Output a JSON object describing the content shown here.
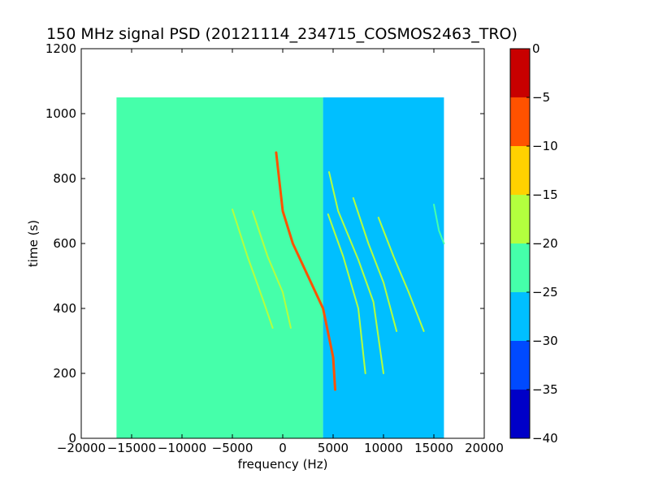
{
  "chart_data": {
    "type": "heatmap",
    "title": "150 MHz signal PSD (20121114_234715_COSMOS2463_TRO)",
    "xlabel": "frequency (Hz)",
    "ylabel": "time (s)",
    "xlim": [
      -20000,
      20000
    ],
    "ylim": [
      0,
      1200
    ],
    "xticks": [
      -20000,
      -15000,
      -10000,
      -5000,
      0,
      5000,
      10000,
      15000,
      20000
    ],
    "xtick_labels": [
      "−20000",
      "−15000",
      "−10000",
      "−5000",
      "0",
      "5000",
      "10000",
      "15000",
      "20000"
    ],
    "yticks": [
      0,
      200,
      400,
      600,
      800,
      1000,
      1200
    ],
    "ytick_labels": [
      "0",
      "200",
      "400",
      "600",
      "800",
      "1000",
      "1200"
    ],
    "data_extent": {
      "x": [
        -16500,
        16500
      ],
      "y": [
        0,
        1050
      ]
    },
    "background_regions": [
      {
        "x": [
          -16500,
          2500
        ],
        "level": -22.5
      },
      {
        "x": [
          2500,
          4000
        ],
        "level": -24
      },
      {
        "x": [
          4000,
          16000
        ],
        "level": -27.5
      }
    ],
    "traces": [
      {
        "level": -7.5,
        "points": [
          [
            -650,
            880
          ],
          [
            0,
            700
          ],
          [
            1000,
            600
          ],
          [
            2500,
            500
          ],
          [
            4000,
            400
          ],
          [
            5000,
            250
          ],
          [
            5200,
            150
          ]
        ]
      },
      {
        "level": -17.5,
        "points": [
          [
            -5000,
            705
          ],
          [
            -3500,
            560
          ],
          [
            -2000,
            430
          ],
          [
            -1000,
            340
          ]
        ]
      },
      {
        "level": -17.5,
        "points": [
          [
            -3000,
            700
          ],
          [
            -1500,
            560
          ],
          [
            0,
            450
          ],
          [
            800,
            340
          ]
        ]
      },
      {
        "level": -17.5,
        "points": [
          [
            4500,
            690
          ],
          [
            6000,
            560
          ],
          [
            7500,
            400
          ],
          [
            8200,
            200
          ]
        ]
      },
      {
        "level": -17.5,
        "points": [
          [
            4600,
            820
          ],
          [
            5500,
            700
          ],
          [
            7500,
            550
          ],
          [
            9000,
            420
          ],
          [
            10000,
            200
          ]
        ]
      },
      {
        "level": -17.5,
        "points": [
          [
            7000,
            740
          ],
          [
            8500,
            600
          ],
          [
            10000,
            480
          ],
          [
            11300,
            330
          ]
        ]
      },
      {
        "level": -17.5,
        "points": [
          [
            9500,
            680
          ],
          [
            11000,
            560
          ],
          [
            12500,
            450
          ],
          [
            14000,
            330
          ]
        ]
      },
      {
        "level": -20,
        "points": [
          [
            15000,
            720
          ],
          [
            15500,
            640
          ],
          [
            16000,
            600
          ]
        ]
      }
    ],
    "colorbar": {
      "range": [
        -40,
        0
      ],
      "ticks": [
        0,
        -5,
        -10,
        -15,
        -20,
        -25,
        -30,
        -35,
        -40
      ],
      "tick_labels": [
        "0",
        "−5",
        "−10",
        "−15",
        "−20",
        "−25",
        "−30",
        "−35",
        "−40"
      ],
      "bins": [
        {
          "from": -40,
          "to": -35,
          "color": "#0000c8"
        },
        {
          "from": -35,
          "to": -30,
          "color": "#004aff"
        },
        {
          "from": -30,
          "to": -25,
          "color": "#00bfff"
        },
        {
          "from": -25,
          "to": -20,
          "color": "#45ffaa"
        },
        {
          "from": -20,
          "to": -15,
          "color": "#b3ff3e"
        },
        {
          "from": -15,
          "to": -10,
          "color": "#ffd200"
        },
        {
          "from": -10,
          "to": -5,
          "color": "#ff5200"
        },
        {
          "from": -5,
          "to": 0,
          "color": "#c80000"
        }
      ]
    }
  }
}
